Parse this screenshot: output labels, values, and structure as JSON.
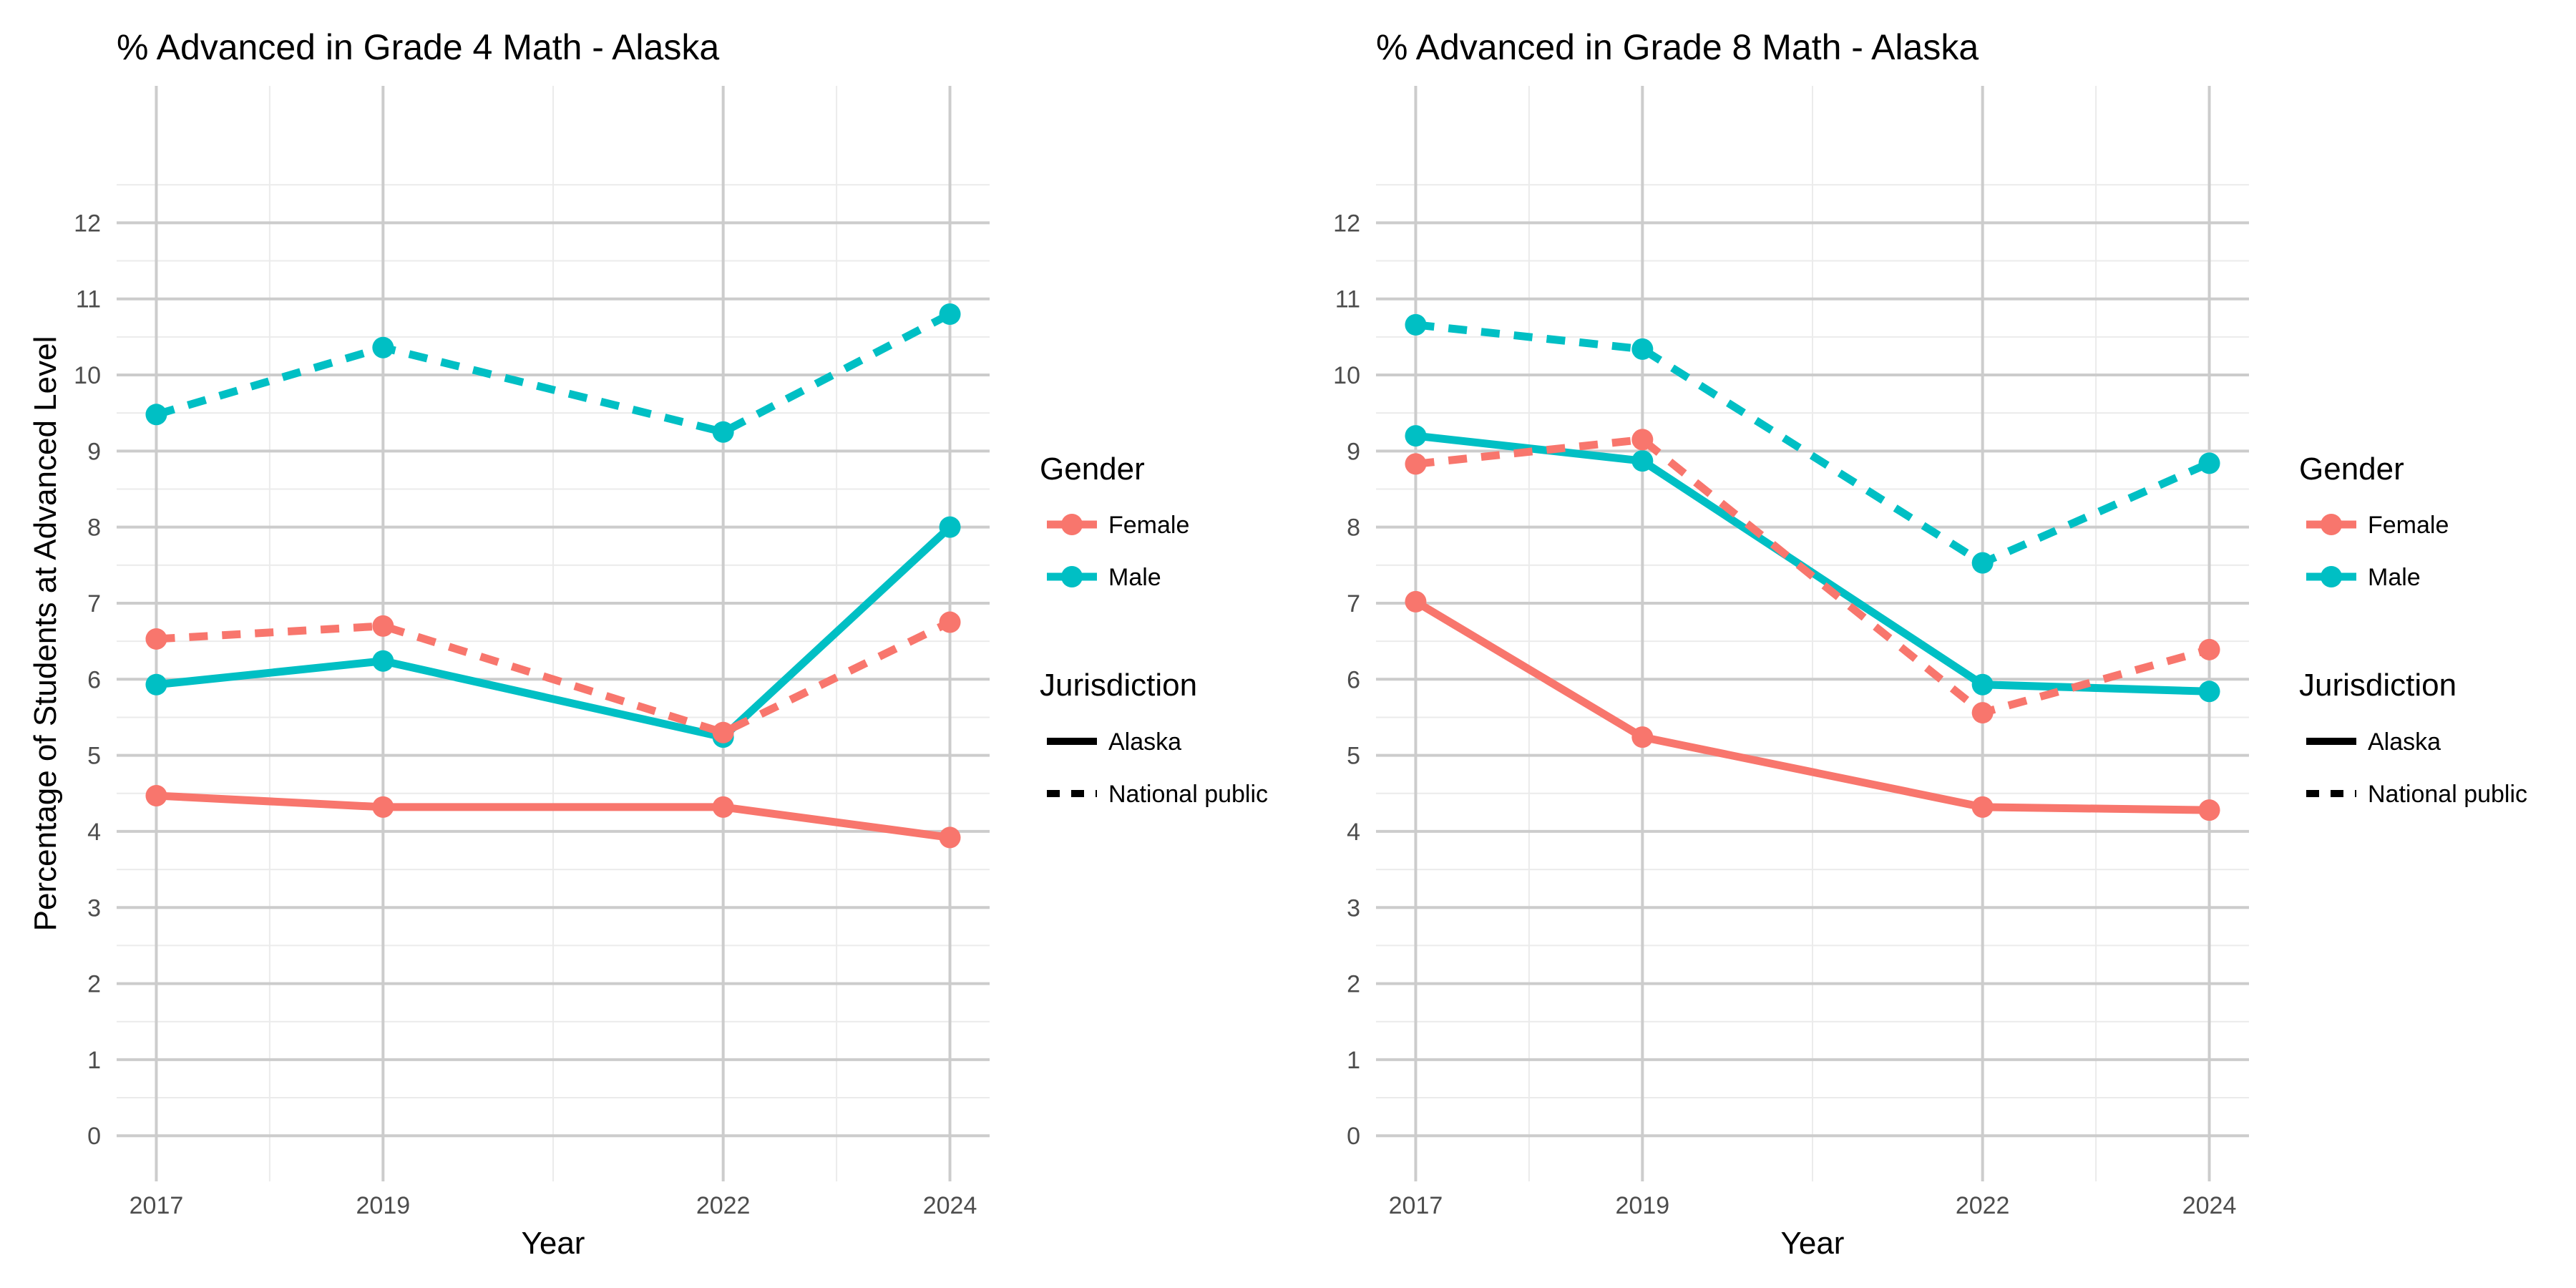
{
  "chart_data": [
    {
      "type": "line",
      "title": "% Advanced in Grade 4 Math - Alaska",
      "xlabel": "Year",
      "ylabel": "Percentage of Students at Advanced Level",
      "x": [
        2017,
        2019,
        2022,
        2024
      ],
      "x_ticks": [
        "2017",
        "2019",
        "2022",
        "2024"
      ],
      "y_ticks": [
        "0",
        "1",
        "2",
        "3",
        "4",
        "5",
        "6",
        "7",
        "8",
        "9",
        "10",
        "11",
        "12"
      ],
      "ylim": [
        -0.6,
        13.8
      ],
      "xlim": [
        2016.65,
        2024.35
      ],
      "grid": true,
      "series": [
        {
          "name": "Female",
          "jurisdiction": "Alaska",
          "color": "#F8766D",
          "dash": "solid",
          "values": [
            4.47,
            4.32,
            4.32,
            3.92
          ]
        },
        {
          "name": "Male",
          "jurisdiction": "Alaska",
          "color": "#00BFC4",
          "dash": "solid",
          "values": [
            5.93,
            6.24,
            5.24,
            8.0
          ]
        },
        {
          "name": "Female",
          "jurisdiction": "National public",
          "color": "#F8766D",
          "dash": "dashed",
          "values": [
            6.53,
            6.7,
            5.3,
            6.75
          ]
        },
        {
          "name": "Male",
          "jurisdiction": "National public",
          "color": "#00BFC4",
          "dash": "dashed",
          "values": [
            9.48,
            10.36,
            9.25,
            10.8
          ]
        }
      ]
    },
    {
      "type": "line",
      "title": "% Advanced in Grade 8 Math - Alaska",
      "xlabel": "Year",
      "ylabel": "",
      "x": [
        2017,
        2019,
        2022,
        2024
      ],
      "x_ticks": [
        "2017",
        "2019",
        "2022",
        "2024"
      ],
      "y_ticks": [
        "0",
        "1",
        "2",
        "3",
        "4",
        "5",
        "6",
        "7",
        "8",
        "9",
        "10",
        "11",
        "12"
      ],
      "ylim": [
        -0.6,
        13.8
      ],
      "xlim": [
        2016.65,
        2024.35
      ],
      "grid": true,
      "series": [
        {
          "name": "Female",
          "jurisdiction": "Alaska",
          "color": "#F8766D",
          "dash": "solid",
          "values": [
            7.02,
            5.24,
            4.32,
            4.28
          ]
        },
        {
          "name": "Male",
          "jurisdiction": "Alaska",
          "color": "#00BFC4",
          "dash": "solid",
          "values": [
            9.2,
            8.87,
            5.93,
            5.84
          ]
        },
        {
          "name": "Female",
          "jurisdiction": "National public",
          "color": "#F8766D",
          "dash": "dashed",
          "values": [
            8.83,
            9.15,
            5.56,
            6.39
          ]
        },
        {
          "name": "Male",
          "jurisdiction": "National public",
          "color": "#00BFC4",
          "dash": "dashed",
          "values": [
            10.66,
            10.34,
            7.53,
            8.84
          ]
        }
      ]
    }
  ],
  "legend": {
    "gender_title": "Gender",
    "gender_items": [
      {
        "label": "Female",
        "color": "#F8766D"
      },
      {
        "label": "Male",
        "color": "#00BFC4"
      }
    ],
    "jurisdiction_title": "Jurisdiction",
    "jurisdiction_items": [
      {
        "label": "Alaska",
        "dash": "solid"
      },
      {
        "label": "National public",
        "dash": "dashed"
      }
    ]
  }
}
